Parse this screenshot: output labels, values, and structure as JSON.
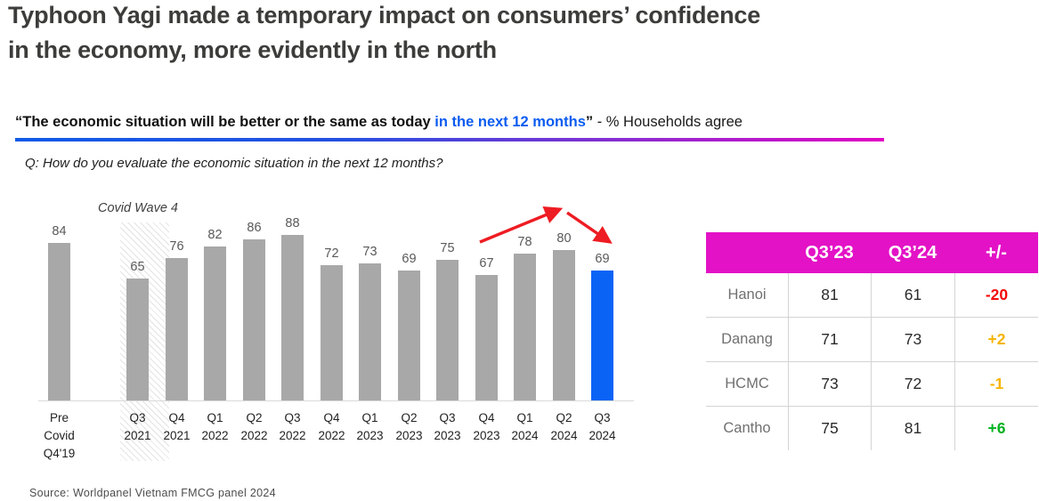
{
  "title_lines": [
    "Typhoon Yagi made a temporary impact on consumers’ confidence",
    "in the economy, more evidently in the north"
  ],
  "subtitle": {
    "quote": "“The economic situation will be better or the same as today ",
    "highlight": "in the next 12 months",
    "close_quote": "”",
    "suffix": " - % Households agree"
  },
  "question": "Q: How do you evaluate the economic situation in the next 12 months?",
  "chart_data": {
    "type": "bar",
    "title": "“The economic situation will be better or the same as today in the next 12 months” - % Households agree",
    "categories": [
      "Pre Covid Q4'19",
      "Q3 2021",
      "Q4 2021",
      "Q1 2022",
      "Q2 2022",
      "Q3 2022",
      "Q4 2022",
      "Q1 2023",
      "Q2 2023",
      "Q3 2023",
      "Q4 2023",
      "Q1 2024",
      "Q2 2024",
      "Q3 2024"
    ],
    "values": [
      84,
      65,
      76,
      82,
      86,
      88,
      72,
      73,
      69,
      75,
      67,
      78,
      80,
      69
    ],
    "ylim": [
      0,
      100
    ],
    "grid": false,
    "highlight_index": 13,
    "annotation": {
      "label": "Covid Wave 4",
      "category": "Q3 2021"
    },
    "colors": {
      "bar": "#a8a8a8",
      "highlight_bar": "#0b63f5",
      "trend_arrow": "#ee1c23",
      "value_label": "#595959"
    }
  },
  "table": {
    "columns": [
      "",
      "Q3’23",
      "Q3’24",
      "+/-"
    ],
    "header_bg": "#e312c6",
    "rows": [
      {
        "city": "Hanoi",
        "q3_23": "81",
        "q3_24": "61",
        "change": "-20",
        "change_color": "#f40b0b"
      },
      {
        "city": "Danang",
        "q3_23": "71",
        "q3_24": "73",
        "change": "+2",
        "change_color": "#f5b400"
      },
      {
        "city": "HCMC",
        "q3_23": "73",
        "q3_24": "72",
        "change": "-1",
        "change_color": "#f5b400"
      },
      {
        "city": "Cantho",
        "q3_23": "75",
        "q3_24": "81",
        "change": "+6",
        "change_color": "#00b11f"
      }
    ]
  },
  "source": "Source: Worldpanel Vietnam FMCG panel 2024",
  "colors": {
    "title_text": "#3c3c3b",
    "highlight_blue": "#0b5cf0",
    "underline_gradient_start": "#0f5ae8",
    "underline_gradient_end": "#e203c4",
    "table_header_magenta": "#e312c6",
    "negative_red": "#f40b0b",
    "neutral_amber": "#f5b400",
    "positive_green": "#00b11f"
  }
}
